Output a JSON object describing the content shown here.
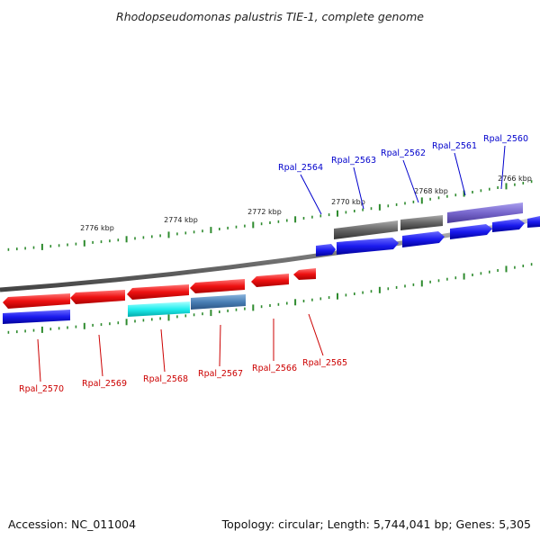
{
  "title": "Rhodopseudomonas palustris TIE-1, complete genome",
  "footer": {
    "accession": "Accession: NC_011004",
    "summary": "Topology: circular; Length: 5,744,041 bp; Genes: 5,305"
  },
  "colors": {
    "background": "#ffffff",
    "backbone": "#8a8a8a",
    "tick": "#2e8b2e",
    "label_forward": "#0000cc",
    "label_reverse": "#cc0000",
    "red_gene": "#ee1111",
    "blue_gene": "#1a1aee",
    "grey_gene": "#666666",
    "purple_gene": "#7766cc",
    "cyan_gene": "#22eeee",
    "steel_gene": "#4a7fb5"
  },
  "kbp_labels": [
    "2776 kbp",
    "2774 kbp",
    "2772 kbp",
    "2770 kbp",
    "2768 kbp",
    "2766 kbp"
  ],
  "genes_forward": [
    {
      "label": "Rpal_2564",
      "color": "grey"
    },
    {
      "label": "Rpal_2563",
      "color": "grey"
    },
    {
      "label": "Rpal_2562",
      "color": "grey"
    },
    {
      "label": "Rpal_2561",
      "color": "purple"
    },
    {
      "label": "Rpal_2560",
      "color": "blue"
    }
  ],
  "genes_reverse": [
    {
      "label": "Rpal_2570",
      "color": "red"
    },
    {
      "label": "Rpal_2569",
      "color": "red"
    },
    {
      "label": "Rpal_2568",
      "color": "cyan"
    },
    {
      "label": "Rpal_2567",
      "color": "steel"
    },
    {
      "label": "Rpal_2566",
      "color": "red"
    },
    {
      "label": "Rpal_2565",
      "color": "red"
    }
  ]
}
